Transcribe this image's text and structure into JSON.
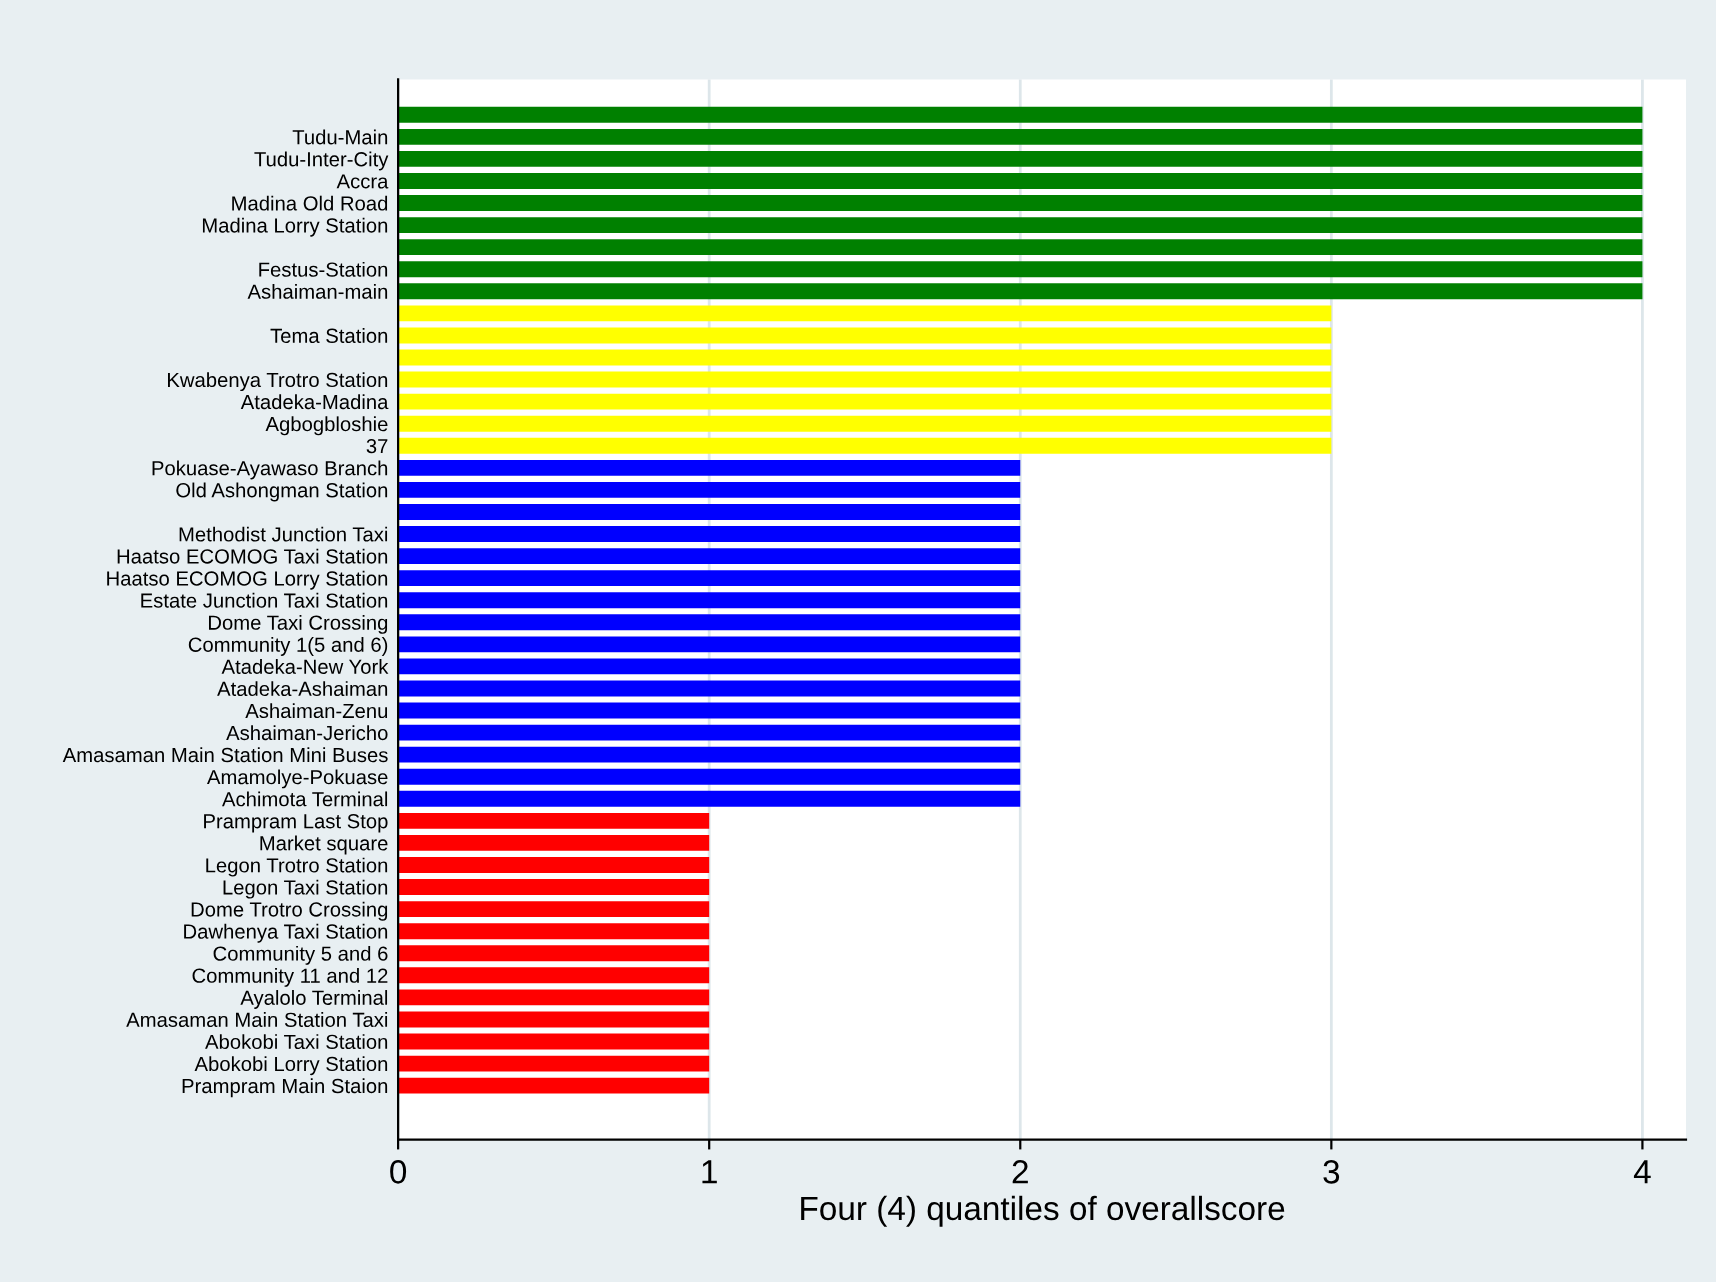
{
  "chart_data": {
    "type": "bar",
    "orientation": "horizontal",
    "xlabel": "Four (4) quantiles of overallscore",
    "categories": [
      null,
      "Tudu-Main",
      "Tudu-Inter-City",
      "Accra",
      "Madina Old Road",
      "Madina Lorry Station",
      null,
      "Festus-Station",
      "Ashaiman-main",
      null,
      "Tema Station",
      null,
      "Kwabenya Trotro Station",
      "Atadeka-Madina",
      "Agbogbloshie",
      "37",
      "Pokuase-Ayawaso Branch",
      "Old Ashongman Station",
      null,
      "Methodist Junction Taxi",
      "Haatso ECOMOG Taxi Station",
      "Haatso ECOMOG Lorry Station",
      "Estate Junction Taxi Station",
      "Dome Taxi Crossing",
      "Community 1(5 and 6)",
      "Atadeka-New York",
      "Atadeka-Ashaiman",
      "Ashaiman-Zenu",
      "Ashaiman-Jericho",
      "Amasaman Main Station Mini Buses",
      "Amamolye-Pokuase",
      "Achimota Terminal",
      "Prampram Last Stop",
      "Market square",
      "Legon Trotro Station",
      "Legon Taxi Station",
      "Dome Trotro Crossing",
      "Dawhenya Taxi Station",
      "Community 5 and 6",
      "Community 11 and 12",
      "Ayalolo Terminal",
      "Amasaman Main Station Taxi",
      "Abokobi Taxi Station",
      "Abokobi Lorry Station",
      "Prampram Main Staion"
    ],
    "values": [
      4,
      4,
      4,
      4,
      4,
      4,
      4,
      4,
      4,
      3,
      3,
      3,
      3,
      3,
      3,
      3,
      2,
      2,
      2,
      2,
      2,
      2,
      2,
      2,
      2,
      2,
      2,
      2,
      2,
      2,
      2,
      2,
      1,
      1,
      1,
      1,
      1,
      1,
      1,
      1,
      1,
      1,
      1,
      1,
      1
    ],
    "colors": [
      "#008000",
      "#008000",
      "#008000",
      "#008000",
      "#008000",
      "#008000",
      "#008000",
      "#008000",
      "#008000",
      "#ffff00",
      "#ffff00",
      "#ffff00",
      "#ffff00",
      "#ffff00",
      "#ffff00",
      "#ffff00",
      "#0000ff",
      "#0000ff",
      "#0000ff",
      "#0000ff",
      "#0000ff",
      "#0000ff",
      "#0000ff",
      "#0000ff",
      "#0000ff",
      "#0000ff",
      "#0000ff",
      "#0000ff",
      "#0000ff",
      "#0000ff",
      "#0000ff",
      "#0000ff",
      "#ff0000",
      "#ff0000",
      "#ff0000",
      "#ff0000",
      "#ff0000",
      "#ff0000",
      "#ff0000",
      "#ff0000",
      "#ff0000",
      "#ff0000",
      "#ff0000",
      "#ff0000",
      "#ff0000"
    ],
    "xlim": [
      0,
      4.14
    ],
    "xticks": [
      0,
      1,
      2,
      3,
      4
    ],
    "grid": "x",
    "legend": false
  }
}
